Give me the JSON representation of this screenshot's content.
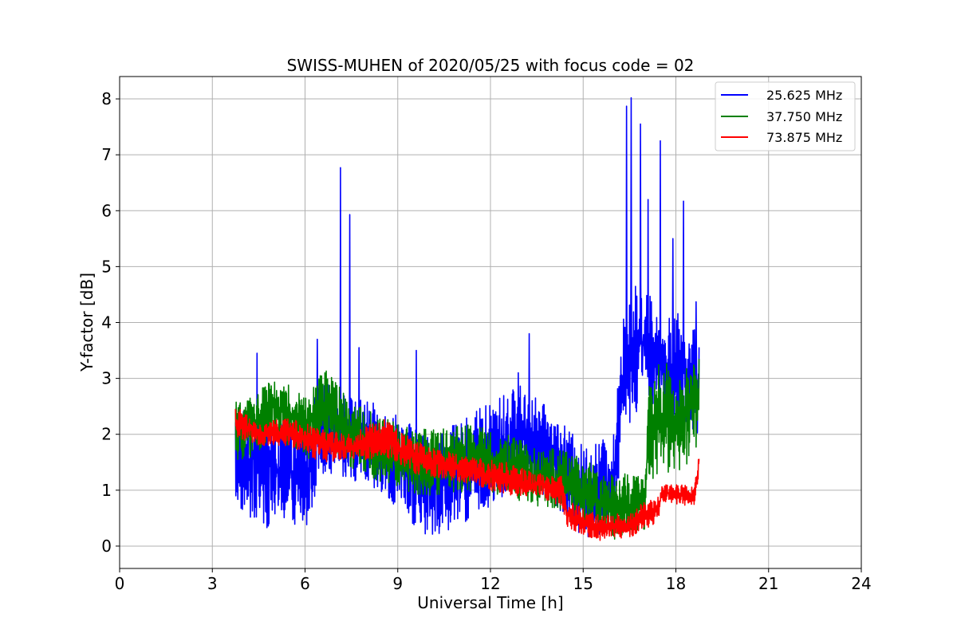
{
  "chart_data": {
    "type": "line",
    "title": "SWISS-MUHEN of 2020/05/25 with focus code = 02",
    "xlabel": "Universal Time [h]",
    "ylabel": "Y-factor [dB]",
    "xlim": [
      0,
      24
    ],
    "ylim": [
      -0.4,
      8.4
    ],
    "x_ticks": [
      0,
      3,
      6,
      9,
      12,
      15,
      18,
      21,
      24
    ],
    "y_ticks": [
      0,
      1,
      2,
      3,
      4,
      5,
      6,
      7,
      8
    ],
    "grid": true,
    "legend_position": "top-right",
    "x_start": 3.75,
    "x_end": 18.75,
    "series": [
      {
        "name": "25.625 MHz",
        "color": "#0000ff",
        "envelope": [
          {
            "x": 3.75,
            "min": 0.7,
            "max": 2.5
          },
          {
            "x": 4.5,
            "min": 0.3,
            "max": 2.6
          },
          {
            "x": 5.5,
            "min": 0.4,
            "max": 2.2
          },
          {
            "x": 6.0,
            "min": 0.2,
            "max": 2.2
          },
          {
            "x": 6.5,
            "min": 1.3,
            "max": 3.0
          },
          {
            "x": 7.0,
            "min": 1.3,
            "max": 2.8
          },
          {
            "x": 8.0,
            "min": 1.0,
            "max": 2.6
          },
          {
            "x": 9.0,
            "min": 0.6,
            "max": 2.4
          },
          {
            "x": 10.0,
            "min": 0.1,
            "max": 2.0
          },
          {
            "x": 11.0,
            "min": 0.4,
            "max": 2.2
          },
          {
            "x": 12.0,
            "min": 0.6,
            "max": 2.6
          },
          {
            "x": 13.0,
            "min": 1.2,
            "max": 2.9
          },
          {
            "x": 14.0,
            "min": 0.8,
            "max": 2.4
          },
          {
            "x": 15.0,
            "min": 0.1,
            "max": 1.8
          },
          {
            "x": 16.0,
            "min": 0.3,
            "max": 2.0
          },
          {
            "x": 16.3,
            "min": 2.0,
            "max": 4.5
          },
          {
            "x": 17.0,
            "min": 2.6,
            "max": 4.8
          },
          {
            "x": 17.5,
            "min": 2.5,
            "max": 4.0
          },
          {
            "x": 18.0,
            "min": 2.0,
            "max": 4.2
          },
          {
            "x": 18.75,
            "min": 2.0,
            "max": 3.8
          }
        ],
        "spikes": [
          {
            "x": 4.45,
            "y": 3.45
          },
          {
            "x": 6.4,
            "y": 3.7
          },
          {
            "x": 7.15,
            "y": 6.77
          },
          {
            "x": 7.45,
            "y": 5.93
          },
          {
            "x": 7.75,
            "y": 3.55
          },
          {
            "x": 9.6,
            "y": 3.5
          },
          {
            "x": 12.9,
            "y": 3.1
          },
          {
            "x": 13.25,
            "y": 3.8
          },
          {
            "x": 16.4,
            "y": 7.87
          },
          {
            "x": 16.55,
            "y": 8.02
          },
          {
            "x": 16.85,
            "y": 7.55
          },
          {
            "x": 17.1,
            "y": 6.2
          },
          {
            "x": 17.5,
            "y": 7.25
          },
          {
            "x": 17.9,
            "y": 5.5
          },
          {
            "x": 18.25,
            "y": 6.17
          },
          {
            "x": 18.65,
            "y": 4.37
          }
        ]
      },
      {
        "name": "37.750 MHz",
        "color": "#008000",
        "envelope": [
          {
            "x": 3.75,
            "min": 1.4,
            "max": 2.6
          },
          {
            "x": 4.5,
            "min": 1.7,
            "max": 2.8
          },
          {
            "x": 5.0,
            "min": 2.0,
            "max": 3.05
          },
          {
            "x": 6.0,
            "min": 1.5,
            "max": 2.7
          },
          {
            "x": 6.6,
            "min": 1.8,
            "max": 3.2
          },
          {
            "x": 7.5,
            "min": 1.4,
            "max": 2.6
          },
          {
            "x": 8.5,
            "min": 1.1,
            "max": 2.3
          },
          {
            "x": 9.5,
            "min": 0.9,
            "max": 2.1
          },
          {
            "x": 10.5,
            "min": 0.9,
            "max": 2.1
          },
          {
            "x": 11.5,
            "min": 1.0,
            "max": 2.2
          },
          {
            "x": 12.5,
            "min": 0.9,
            "max": 2.0
          },
          {
            "x": 13.5,
            "min": 0.7,
            "max": 1.8
          },
          {
            "x": 14.5,
            "min": 0.6,
            "max": 1.7
          },
          {
            "x": 15.5,
            "min": 0.2,
            "max": 1.4
          },
          {
            "x": 16.0,
            "min": 0.05,
            "max": 1.3
          },
          {
            "x": 17.0,
            "min": 0.3,
            "max": 1.3
          },
          {
            "x": 17.1,
            "min": 1.1,
            "max": 2.9
          },
          {
            "x": 17.6,
            "min": 1.3,
            "max": 3.4
          },
          {
            "x": 18.2,
            "min": 1.3,
            "max": 3.1
          },
          {
            "x": 18.75,
            "min": 1.8,
            "max": 3.4
          }
        ],
        "spikes": []
      },
      {
        "name": "73.875 MHz",
        "color": "#ff0000",
        "envelope": [
          {
            "x": 3.75,
            "min": 1.9,
            "max": 2.5
          },
          {
            "x": 4.5,
            "min": 1.8,
            "max": 2.2
          },
          {
            "x": 5.5,
            "min": 1.8,
            "max": 2.3
          },
          {
            "x": 6.5,
            "min": 1.5,
            "max": 2.1
          },
          {
            "x": 7.5,
            "min": 1.5,
            "max": 2.0
          },
          {
            "x": 8.5,
            "min": 1.6,
            "max": 2.3
          },
          {
            "x": 9.5,
            "min": 1.3,
            "max": 1.9
          },
          {
            "x": 10.5,
            "min": 1.2,
            "max": 1.7
          },
          {
            "x": 11.5,
            "min": 1.1,
            "max": 1.6
          },
          {
            "x": 12.5,
            "min": 0.9,
            "max": 1.5
          },
          {
            "x": 13.5,
            "min": 0.9,
            "max": 1.3
          },
          {
            "x": 14.3,
            "min": 0.7,
            "max": 1.3
          },
          {
            "x": 14.5,
            "min": 0.3,
            "max": 0.8
          },
          {
            "x": 15.5,
            "min": 0.1,
            "max": 0.6
          },
          {
            "x": 16.5,
            "min": 0.15,
            "max": 0.6
          },
          {
            "x": 17.0,
            "min": 0.3,
            "max": 0.8
          },
          {
            "x": 17.4,
            "min": 0.4,
            "max": 0.9
          },
          {
            "x": 17.55,
            "min": 0.8,
            "max": 1.1
          },
          {
            "x": 18.6,
            "min": 0.7,
            "max": 1.1
          },
          {
            "x": 18.75,
            "min": 1.3,
            "max": 1.8
          }
        ],
        "spikes": []
      }
    ]
  }
}
